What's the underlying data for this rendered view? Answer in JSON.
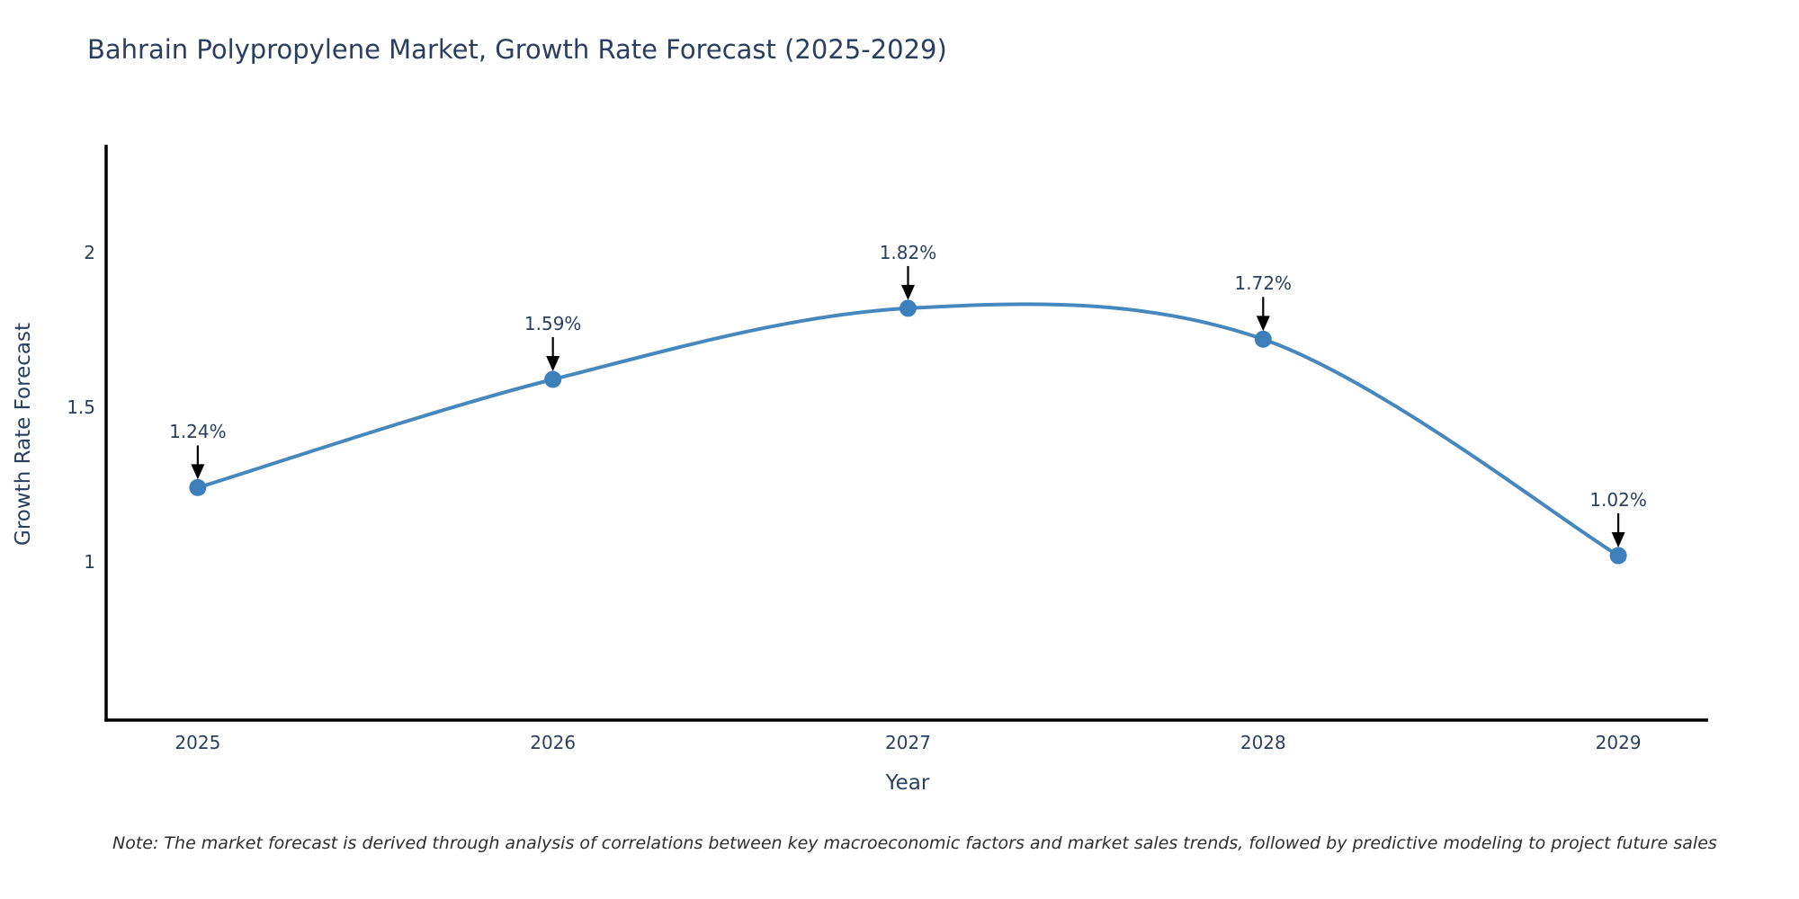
{
  "chart_data": {
    "type": "line",
    "title": "Bahrain Polypropylene Market, Growth Rate Forecast (2025-2029)",
    "xlabel": "Year",
    "ylabel": "Growth Rate Forecast",
    "x": [
      2025,
      2026,
      2027,
      2028,
      2029
    ],
    "y": [
      1.24,
      1.59,
      1.82,
      1.72,
      1.02
    ],
    "point_labels": [
      "1.24%",
      "1.59%",
      "1.82%",
      "1.72%",
      "1.02%"
    ],
    "x_tick_labels": [
      "2025",
      "2026",
      "2027",
      "2028",
      "2029"
    ],
    "x_tick_values": [
      2025,
      2026,
      2027,
      2028,
      2029
    ],
    "y_tick_labels": [
      "1",
      "1.5",
      "2"
    ],
    "y_tick_values": [
      1,
      1.5,
      2
    ],
    "xlim": [
      2024.742,
      2029.253
    ],
    "ylim": [
      0.488,
      2.349
    ],
    "line_shape": "spline",
    "grid": false,
    "legend": "none",
    "line_color": "#4688bd",
    "marker_color": "#3d7fba",
    "axis_color": "#000000",
    "text_color": "#2a3f5f",
    "annotation_arrow_color": "#000000"
  },
  "footnote": {
    "text": "Note: The market forecast is derived through analysis of correlations between key macroeconomic factors and market sales trends, followed by predictive modeling to project future sales"
  }
}
